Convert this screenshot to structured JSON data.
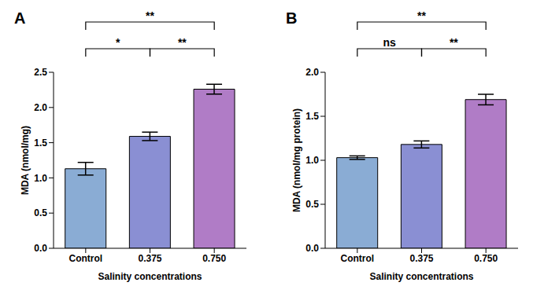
{
  "chart_data": [
    {
      "type": "bar",
      "title": "A",
      "x_label": "Salinity concentrations",
      "y_label": "MDA (nmol/mg)",
      "categories": [
        "Control",
        "0.375",
        "0.750"
      ],
      "values": [
        1.13,
        1.59,
        2.26
      ],
      "errors": [
        0.09,
        0.06,
        0.07
      ],
      "colors": [
        "#8aacd4",
        "#8a8fd3",
        "#b07cc6"
      ],
      "ylim": [
        0,
        2.5
      ],
      "yticks": [
        {
          "value": 0,
          "label": "0.0"
        },
        0.5,
        {
          "value": 1,
          "label": "1.0"
        },
        1.5,
        {
          "value": 2,
          "label": "2.0"
        },
        2.5
      ],
      "comparisons": [
        {
          "groups": [
            "Control",
            "0.375"
          ],
          "label": "*"
        },
        {
          "groups": [
            "0.375",
            "0.750"
          ],
          "label": "**"
        },
        {
          "groups": [
            "Control",
            "0.750"
          ],
          "label": "**"
        }
      ]
    },
    {
      "type": "bar",
      "title": "B",
      "x_label": "Salinity concentrations",
      "y_label": "MDA (nmol/mg protein)",
      "categories": [
        "Control",
        "0.375",
        "0.750"
      ],
      "values": [
        1.03,
        1.18,
        1.69
      ],
      "errors": [
        0.02,
        0.04,
        0.06
      ],
      "colors": [
        "#8aacd4",
        "#8a8fd3",
        "#b07cc6"
      ],
      "ylim": [
        0,
        2.0
      ],
      "yticks": [
        {
          "value": 0,
          "label": "0.0"
        },
        0.5,
        {
          "value": 1,
          "label": "1.0"
        },
        1.5,
        {
          "value": 2,
          "label": "2.0"
        }
      ],
      "comparisons": [
        {
          "groups": [
            "Control",
            "0.375"
          ],
          "label": "ns"
        },
        {
          "groups": [
            "0.375",
            "0.750"
          ],
          "label": "**"
        },
        {
          "groups": [
            "Control",
            "0.750"
          ],
          "label": "**"
        }
      ]
    }
  ]
}
